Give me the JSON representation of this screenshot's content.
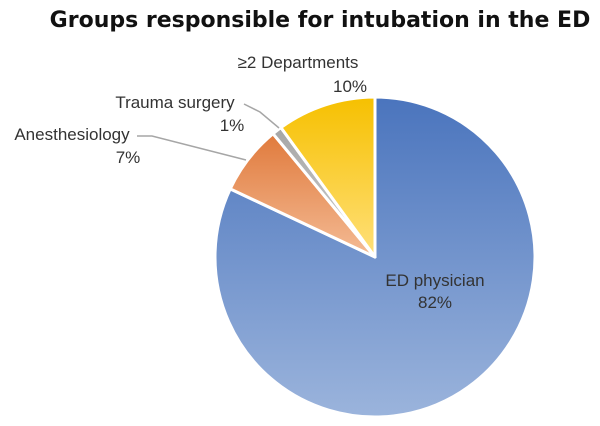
{
  "chart_data": {
    "type": "pie",
    "title": "Groups responsible for intubation in the ED",
    "start_angle_deg": 0,
    "direction": "clockwise",
    "slices": [
      {
        "label": "ED physician",
        "value": 82,
        "value_label": "82%",
        "color_top": "#4a74bd",
        "color_bottom": "#9bb4dc"
      },
      {
        "label": "Anesthesiology",
        "value": 7,
        "value_label": "7%",
        "color_top": "#e07a3c",
        "color_bottom": "#f4bb95"
      },
      {
        "label": "Trauma surgery",
        "value": 1,
        "value_label": "1%",
        "color_top": "#a6a6a6",
        "color_bottom": "#cfcfcf"
      },
      {
        "label": "≥2 Departments",
        "value": 10,
        "value_label": "10%",
        "color_top": "#f6c000",
        "color_bottom": "#ffe07a"
      }
    ]
  }
}
